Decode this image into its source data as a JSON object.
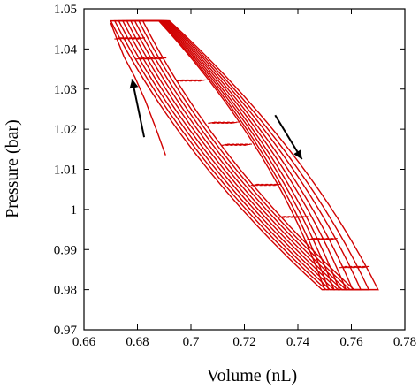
{
  "chart_data": {
    "type": "line",
    "title": "",
    "xlabel": "Volume (nL)",
    "ylabel": "Pressure (bar)",
    "xlim": [
      0.66,
      0.78
    ],
    "ylim": [
      0.97,
      1.05
    ],
    "x_ticks": [
      "0.66",
      "0.68",
      "0.7",
      "0.72",
      "0.74",
      "0.76",
      "0.78"
    ],
    "y_ticks": [
      "0.97",
      "0.98",
      "0.99",
      "1",
      "1.01",
      "1.02",
      "1.03",
      "1.04",
      "1.05"
    ],
    "grid": false,
    "legend": "none",
    "series_color": "#d10000",
    "arrow_color": "#000000",
    "series": [
      {
        "loop_count": 9,
        "initial_branch": {
          "x": [
            0.6905,
            0.687,
            0.683,
            0.679,
            0.675,
            0.672,
            0.67
          ],
          "y": [
            1.0135,
            1.02,
            1.027,
            1.033,
            1.038,
            1.043,
            1.0465
          ]
        },
        "loops": [
          {
            "x_start": 0.67,
            "x_end": 0.75,
            "top_plateau_end": 0.688,
            "bottom_plateau_start": 0.749
          },
          {
            "x_start": 0.6715,
            "x_end": 0.7515,
            "top_plateau_end": 0.6885,
            "bottom_plateau_start": 0.7505
          },
          {
            "x_start": 0.673,
            "x_end": 0.7535,
            "top_plateau_end": 0.689,
            "bottom_plateau_start": 0.752
          },
          {
            "x_start": 0.6745,
            "x_end": 0.7555,
            "top_plateau_end": 0.6895,
            "bottom_plateau_start": 0.7535
          },
          {
            "x_start": 0.676,
            "x_end": 0.758,
            "top_plateau_end": 0.69,
            "bottom_plateau_start": 0.755
          },
          {
            "x_start": 0.6775,
            "x_end": 0.7605,
            "top_plateau_end": 0.6905,
            "bottom_plateau_start": 0.7565
          },
          {
            "x_start": 0.679,
            "x_end": 0.7635,
            "top_plateau_end": 0.691,
            "bottom_plateau_start": 0.758
          },
          {
            "x_start": 0.6805,
            "x_end": 0.7665,
            "top_plateau_end": 0.6915,
            "bottom_plateau_start": 0.7595
          },
          {
            "x_start": 0.682,
            "x_end": 0.77,
            "top_plateau_end": 0.692,
            "bottom_plateau_start": 0.761
          }
        ],
        "p_max": 1.047,
        "p_min": 0.98
      }
    ],
    "annotations": [
      {
        "type": "arrow",
        "x": [
          0.6825,
          0.678
        ],
        "y": [
          1.018,
          1.0325
        ]
      },
      {
        "type": "arrow",
        "x": [
          0.7315,
          0.7415
        ],
        "y": [
          1.0235,
          1.0125
        ]
      }
    ]
  }
}
